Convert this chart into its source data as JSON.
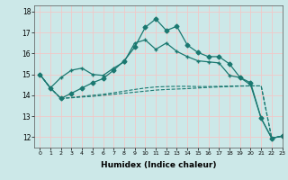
{
  "xlabel": "Humidex (Indice chaleur)",
  "background_color": "#cce8e8",
  "grid_color": "#f2c8c8",
  "line_color": "#1a7870",
  "xlim": [
    -0.5,
    23
  ],
  "ylim": [
    11.5,
    18.3
  ],
  "yticks": [
    12,
    13,
    14,
    15,
    16,
    17,
    18
  ],
  "xticks": [
    0,
    1,
    2,
    3,
    4,
    5,
    6,
    7,
    8,
    9,
    10,
    11,
    12,
    13,
    14,
    15,
    16,
    17,
    18,
    19,
    20,
    21,
    22,
    23
  ],
  "series": [
    {
      "y": [
        15.0,
        14.35,
        14.85,
        15.2,
        15.3,
        15.0,
        14.95,
        15.3,
        15.6,
        16.5,
        16.65,
        16.2,
        16.5,
        16.1,
        15.85,
        15.65,
        15.6,
        15.55,
        14.95,
        14.85,
        14.5,
        12.9,
        11.95,
        12.05
      ],
      "linestyle": "-",
      "marker": "+",
      "markersize": 3.5,
      "linewidth": 0.9
    },
    {
      "y": [
        15.0,
        14.35,
        13.85,
        13.88,
        13.92,
        13.95,
        14.0,
        14.05,
        14.1,
        14.15,
        14.2,
        14.25,
        14.28,
        14.3,
        14.32,
        14.35,
        14.38,
        14.4,
        14.42,
        14.44,
        14.45,
        14.45,
        11.95,
        12.05
      ],
      "linestyle": "--",
      "marker": null,
      "markersize": 0,
      "linewidth": 0.8
    },
    {
      "y": [
        15.0,
        14.35,
        13.85,
        13.9,
        13.95,
        14.0,
        14.05,
        14.12,
        14.2,
        14.28,
        14.35,
        14.4,
        14.42,
        14.43,
        14.43,
        14.42,
        14.42,
        14.43,
        14.44,
        14.45,
        14.45,
        14.45,
        11.95,
        12.05
      ],
      "linestyle": "--",
      "marker": null,
      "markersize": 0,
      "linewidth": 0.8
    },
    {
      "y": [
        15.0,
        14.35,
        13.85,
        14.1,
        14.35,
        14.6,
        14.8,
        15.2,
        15.65,
        16.3,
        17.25,
        17.65,
        17.1,
        17.3,
        16.4,
        16.05,
        15.85,
        15.85,
        15.5,
        14.85,
        14.6,
        12.9,
        11.95,
        12.05
      ],
      "linestyle": "-",
      "marker": "D",
      "markersize": 2.5,
      "linewidth": 0.9
    }
  ]
}
